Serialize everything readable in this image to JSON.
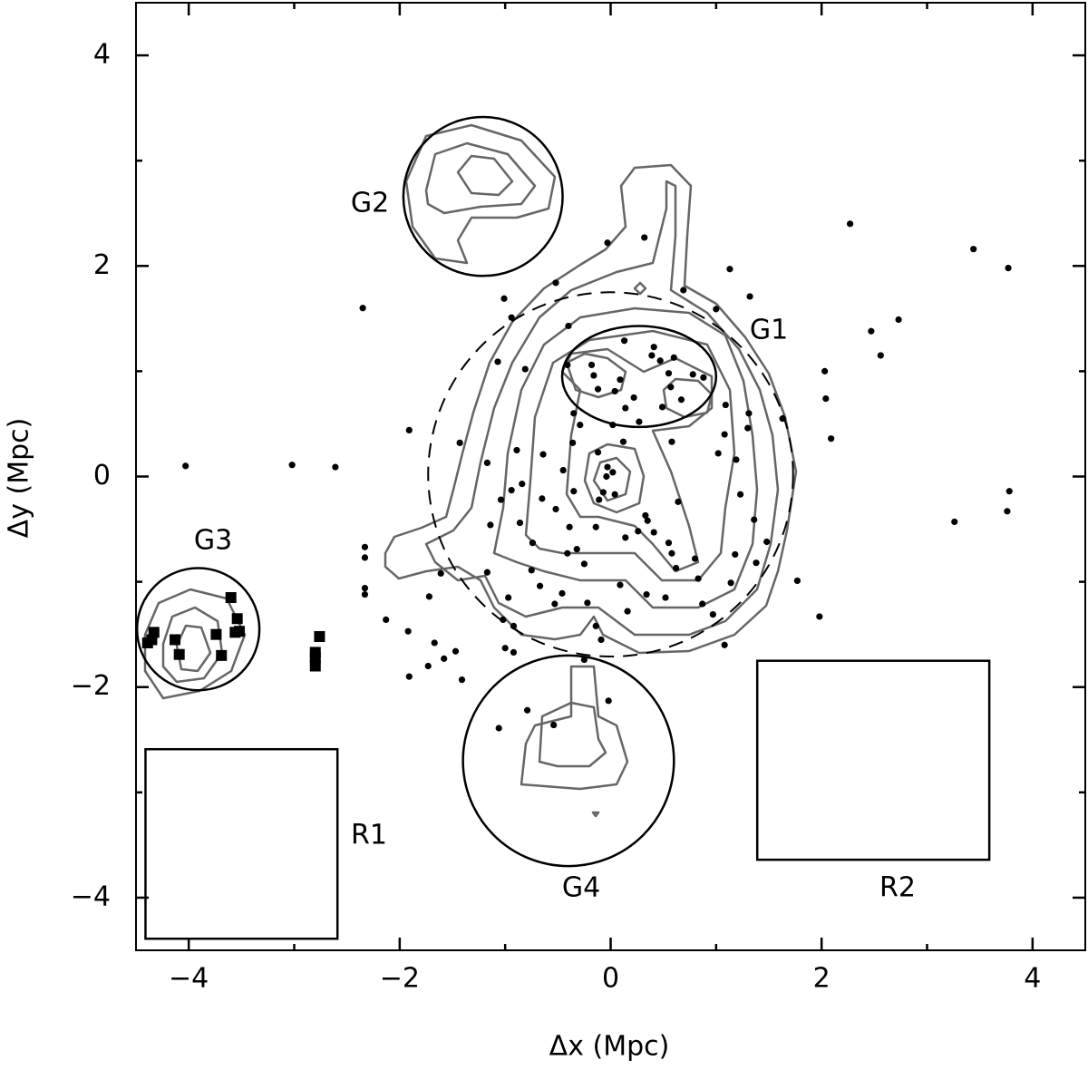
{
  "chart_data": {
    "type": "scatter",
    "xlabel": "Δx (Mpc)",
    "ylabel": "Δy (Mpc)",
    "xlim": [
      -4.5,
      4.5
    ],
    "ylim": [
      -4.5,
      4.5
    ],
    "xticks": [
      {
        "value": -4,
        "label": "−4"
      },
      {
        "value": -2,
        "label": "−2"
      },
      0,
      2,
      4
    ],
    "yticks": [
      {
        "value": -4,
        "label": "−4"
      },
      {
        "value": -2,
        "label": "−2"
      },
      0,
      2,
      4
    ],
    "xminorticks": [
      -3,
      -1,
      1,
      3
    ],
    "yminorticks": [
      -3,
      -1,
      1,
      3
    ],
    "grid": false,
    "points": {
      "marker": "circle",
      "color": "#000000",
      "x": [
        -2.35,
        -4.03,
        -3.02,
        -2.61,
        2.27,
        3.44,
        3.77,
        2.47,
        2.73,
        2.56,
        2.03,
        2.04,
        2.09,
        3.78,
        3.76,
        3.26,
        1.77,
        1.98,
        1.63,
        -2.33,
        -2.33,
        -2.33,
        -2.33,
        -2.13,
        -1.91,
        -1.92,
        -1.91,
        -1.73,
        -1.67,
        -1.58,
        -1.47,
        -1.41,
        -1.72,
        -1.61,
        -1.17,
        -1.02,
        -0.92,
        -1.06,
        -0.79,
        -0.54,
        -0.03,
        0.32,
        -0.52,
        -1.01,
        1.13,
        0.69,
        1.32,
        -0.94,
        1.0,
        -0.4,
        0.13,
        0.41,
        0.39,
        0.47,
        0.6,
        0.78,
        -0.18,
        -0.41,
        -0.81,
        -1.07,
        -0.16,
        0.09,
        -0.12,
        0.55,
        0.88,
        0.57,
        0.67,
        -0.35,
        -0.29,
        0.04,
        0.14,
        0.49,
        0.02,
        0.27,
        0.22,
        1.09,
        1.31,
        1.3,
        1.08,
        1.02,
        0.58,
        0.12,
        -0.12,
        -0.36,
        -0.64,
        -0.89,
        -1.43,
        -1.17,
        -0.94,
        -0.84,
        -0.45,
        -0.03,
        0.02,
        -0.04,
        0.04,
        -0.07,
        -0.11,
        -0.35,
        -0.65,
        -0.52,
        -1.04,
        -0.86,
        -0.39,
        -0.14,
        0.35,
        0.64,
        0.33,
        0.26,
        0.41,
        1.19,
        1.23,
        1.36,
        1.48,
        1.38,
        1.18,
        0.55,
        0.58,
        0.8,
        0.62,
        0.83,
        1.14,
        0.87,
        0.52,
        0.34,
        0.16,
        0.09,
        0.14,
        -0.32,
        -0.41,
        -0.25,
        -0.46,
        -0.53,
        -0.22,
        -0.14,
        -0.75,
        -0.74,
        -1.14,
        -0.97,
        -0.67,
        -0.92,
        -0.25,
        -1.0,
        -0.09,
        -0.02,
        0.97,
        1.08
      ],
      "y": [
        1.6,
        0.1,
        0.11,
        0.09,
        2.4,
        2.16,
        1.98,
        1.38,
        1.49,
        1.15,
        1.0,
        0.74,
        0.36,
        -0.14,
        -0.33,
        -0.43,
        -0.99,
        -1.33,
        0.55,
        -0.67,
        -0.77,
        -1.06,
        -1.12,
        -1.36,
        0.44,
        -1.47,
        -1.9,
        -1.8,
        -1.58,
        -1.73,
        -1.66,
        -1.93,
        -1.14,
        -0.92,
        -0.91,
        -1.36,
        -1.67,
        -2.39,
        -2.22,
        -2.36,
        2.22,
        2.27,
        1.84,
        1.69,
        1.97,
        1.77,
        1.71,
        1.51,
        1.59,
        1.43,
        1.29,
        1.23,
        1.15,
        1.1,
        1.13,
        0.97,
        1.06,
        1.06,
        1.02,
        1.09,
        0.96,
        0.92,
        0.83,
        0.98,
        0.94,
        0.85,
        0.73,
        0.6,
        0.49,
        0.81,
        0.65,
        0.66,
        0.49,
        0.52,
        0.75,
        0.68,
        0.6,
        0.46,
        0.4,
        0.22,
        0.33,
        0.33,
        0.23,
        0.32,
        0.21,
        0.25,
        0.32,
        0.13,
        -0.13,
        -0.07,
        0.06,
        0.09,
        0.04,
        0.0,
        -0.17,
        -0.15,
        -0.22,
        -0.14,
        -0.21,
        -0.31,
        -0.22,
        -0.44,
        -0.48,
        -0.48,
        -0.42,
        -0.24,
        -0.37,
        -0.52,
        -0.53,
        0.16,
        -0.17,
        -0.41,
        -0.62,
        -0.82,
        -0.74,
        -0.63,
        -0.73,
        -0.78,
        -0.87,
        -0.97,
        -1.01,
        -1.21,
        -1.15,
        -1.12,
        -1.28,
        -1.03,
        -0.58,
        -0.69,
        -0.73,
        -0.83,
        -1.11,
        -1.21,
        -1.2,
        -1.42,
        -0.89,
        -0.63,
        -0.46,
        -1.15,
        -1.04,
        -1.42,
        -1.74,
        -1.63,
        -1.55,
        -2.13,
        -1.31,
        -1.6
      ]
    },
    "members": {
      "marker": "square",
      "color": "#000000",
      "x": [
        -3.6,
        -3.54,
        -3.52,
        -3.56,
        -3.74,
        -3.69,
        -4.13,
        -4.09,
        -4.33,
        -4.39,
        -4.35,
        -2.76,
        -2.8,
        -2.8,
        -2.8
      ],
      "y": [
        -1.15,
        -1.35,
        -1.47,
        -1.48,
        -1.5,
        -1.7,
        -1.55,
        -1.69,
        -1.48,
        -1.58,
        -1.55,
        -1.52,
        -1.67,
        -1.72,
        -1.8
      ]
    },
    "regions": [
      {
        "label": "G1",
        "shape": "ellipse",
        "cx": 0.27,
        "cy": 0.95,
        "rx": 0.73,
        "ry": 0.48
      },
      {
        "label": "G2",
        "shape": "circle",
        "cx": -1.21,
        "cy": 2.66,
        "r": 0.755
      },
      {
        "label": "G3",
        "shape": "circle",
        "cx": -3.91,
        "cy": -1.45,
        "r": 0.58
      },
      {
        "label": "G4",
        "shape": "circle",
        "cx": -0.4,
        "cy": -2.7,
        "r": 1.0
      },
      {
        "label": "R1",
        "shape": "rect",
        "x": [
          -4.41,
          -2.59
        ],
        "y": [
          -4.39,
          -2.59
        ]
      },
      {
        "label": "R2",
        "shape": "rect",
        "x": [
          1.39,
          3.59
        ],
        "y": [
          -3.64,
          -1.75
        ]
      },
      {
        "shape": "circle",
        "cx": 0,
        "cy": 0.02,
        "r": 1.73,
        "dashed": true
      }
    ]
  }
}
